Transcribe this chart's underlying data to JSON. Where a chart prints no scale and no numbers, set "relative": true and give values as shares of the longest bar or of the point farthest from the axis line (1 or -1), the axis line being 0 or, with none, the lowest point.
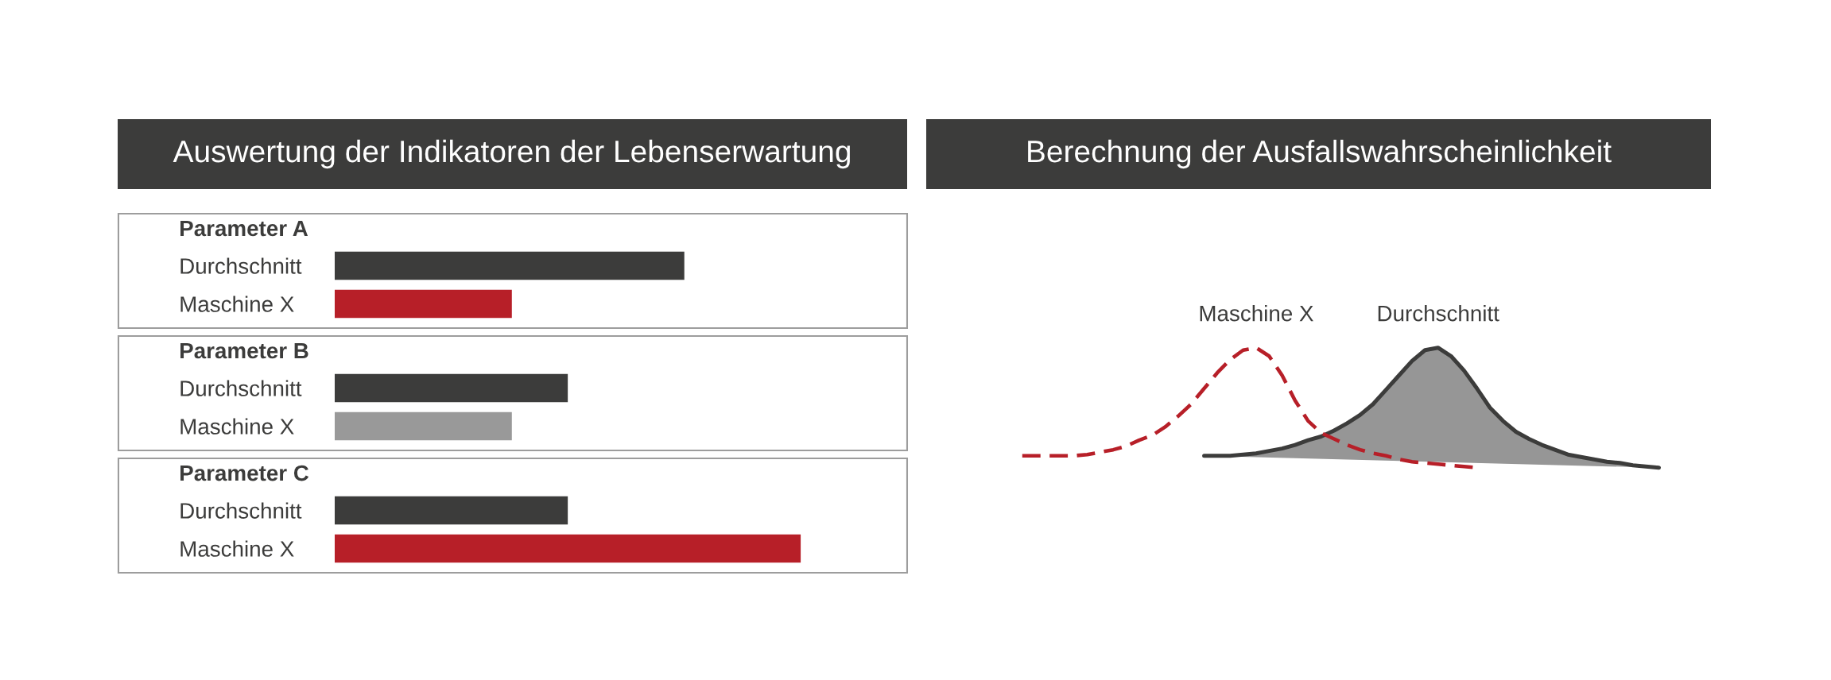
{
  "chart_data": [
    {
      "type": "bar",
      "orientation": "horizontal",
      "relative": true,
      "title": "Auswertung der Indikatoren der Lebenserwartung",
      "categories": [
        "Durchschnitt",
        "Maschine X",
        "Durchschnitt",
        "Maschine X",
        "Durchschnitt",
        "Maschine X"
      ],
      "values": [
        0.75,
        0.38,
        0.5,
        0.38,
        0.5,
        1
      ],
      "colors": [
        "#3c3c3b",
        "#b71f28",
        "#3c3c3b",
        "#999999",
        "#3c3c3b",
        "#b71f28"
      ],
      "annotations": [
        "Parameter A",
        "Parameter B",
        "Parameter C"
      ]
    },
    {
      "type": "line",
      "relative": true,
      "title": "Berechnung der Ausfallswahrscheinlichkeit",
      "categories": [
        null,
        null,
        null,
        null,
        null,
        null,
        null,
        null,
        null,
        null,
        null,
        null,
        null,
        null,
        null,
        null,
        null,
        null,
        null,
        null,
        null,
        null,
        null,
        null,
        null,
        null,
        null,
        null,
        null,
        null,
        null,
        null,
        null,
        null,
        null,
        null,
        null,
        null,
        null,
        null,
        null,
        null,
        null,
        null,
        null,
        null,
        null,
        null,
        null,
        null
      ],
      "series": [
        {
          "name": "Maschine X",
          "type": "line",
          "line_style": "dashed",
          "color": "#b71f28",
          "values": [
            0.1,
            0.1,
            0.1,
            0.1,
            0.1,
            0.11,
            0.13,
            0.15,
            0.18,
            0.23,
            0.27,
            0.34,
            0.43,
            0.53,
            0.66,
            0.79,
            0.9,
            0.98,
            1,
            0.93,
            0.77,
            0.56,
            0.39,
            0.29,
            0.24,
            0.19,
            0.15,
            0.12,
            0.1,
            0.07,
            0.05,
            0.04,
            0.03,
            0.02,
            0.01,
            0,
            null,
            null,
            null,
            null,
            null,
            null,
            null,
            null,
            null,
            null,
            null,
            null,
            null,
            null
          ]
        },
        {
          "name": "Durchschnitt",
          "type": "area",
          "color": "#969696",
          "values": [
            null,
            null,
            null,
            null,
            null,
            null,
            null,
            null,
            null,
            null,
            null,
            null,
            null,
            null,
            0.1,
            0.1,
            0.1,
            0.11,
            0.12,
            0.14,
            0.16,
            0.19,
            0.23,
            0.26,
            0.31,
            0.37,
            0.44,
            0.53,
            0.65,
            0.77,
            0.89,
            0.98,
            1,
            0.93,
            0.81,
            0.66,
            0.5,
            0.39,
            0.3,
            0.24,
            0.19,
            0.15,
            0.11,
            0.09,
            0.07,
            0.05,
            0.04,
            0.02,
            0.01,
            0
          ]
        }
      ]
    }
  ]
}
